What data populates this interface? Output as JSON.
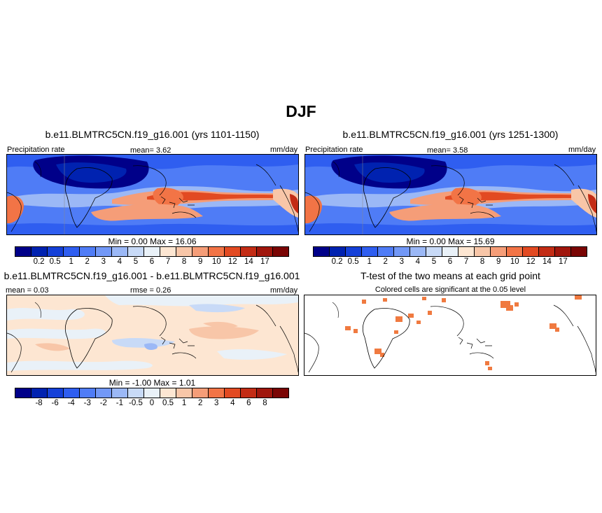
{
  "title": "DJF",
  "colors": {
    "precip": [
      "#000089",
      "#0022b0",
      "#1440d8",
      "#2f5ef0",
      "#4f7cf6",
      "#7298f7",
      "#9bb8f6",
      "#c8daf7",
      "#e9f1f8",
      "#fde6d2",
      "#f8c6a8",
      "#f59d78",
      "#f27446",
      "#e24a22",
      "#c32c15",
      "#a0160c",
      "#7a0504"
    ],
    "diff": [
      "#000089",
      "#0022b0",
      "#1440d8",
      "#2f5ef0",
      "#4f7cf6",
      "#7298f7",
      "#9bb8f6",
      "#c8daf7",
      "#e9f1f8",
      "#fde6d2",
      "#f8c6a8",
      "#f59d78",
      "#f27446",
      "#e24a22",
      "#c32c15",
      "#a0160c",
      "#7a0504"
    ],
    "significant": "#f07a40"
  },
  "panels": [
    {
      "title": "b.e11.BLMTRC5CN.f19_g16.001 (yrs 1101-1150)",
      "left_label": "Precipitation rate",
      "center_label": "mean=   3.62",
      "right_label": "mm/day",
      "minmax": "Min =   0.00 Max =   16.06",
      "colorbar_labels": [
        "0.2",
        "0.5",
        "1",
        "2",
        "3",
        "4",
        "5",
        "6",
        "7",
        "8",
        "9",
        "10",
        "12",
        "14",
        "17"
      ]
    },
    {
      "title": "b.e11.BLMTRC5CN.f19_g16.001 (yrs 1251-1300)",
      "left_label": "Precipitation rate",
      "center_label": "mean=   3.58",
      "right_label": "mm/day",
      "minmax": "Min =   0.00 Max =   15.69",
      "colorbar_labels": [
        "0.2",
        "0.5",
        "1",
        "2",
        "3",
        "4",
        "5",
        "6",
        "7",
        "8",
        "9",
        "10",
        "12",
        "14",
        "17"
      ]
    },
    {
      "title": "b.e11.BLMTRC5CN.f19_g16.001 - b.e11.BLMTRC5CN.f19_g16.001",
      "left_label": "mean =   0.03",
      "center_label": "rmse =   0.26",
      "right_label": "mm/day",
      "minmax": "Min =  -1.00 Max =   1.01",
      "colorbar_labels": [
        "-8",
        "-6",
        "-4",
        "-3",
        "-2",
        "-1",
        "-0.5",
        "0",
        "0.5",
        "1",
        "2",
        "3",
        "4",
        "6",
        "8"
      ]
    },
    {
      "title": "T-test of the two means at each grid point",
      "center_label": "Colored cells are significant at the 0.05 level"
    }
  ]
}
